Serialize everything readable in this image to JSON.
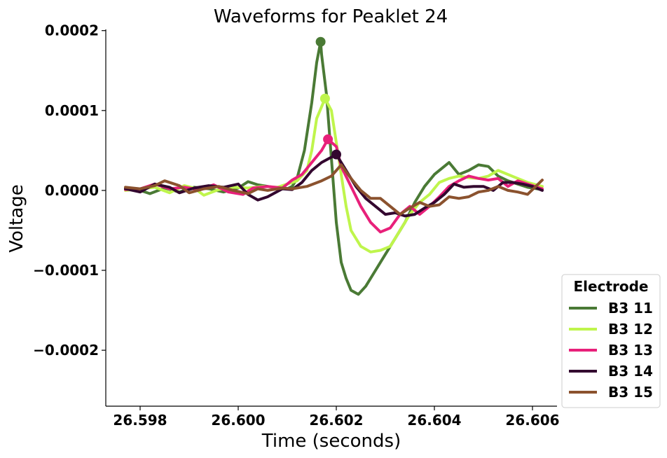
{
  "chart_data": {
    "type": "line",
    "title": "Waveforms for Peaklet 24",
    "xlabel": "Time (seconds)",
    "ylabel": "Voltage",
    "xlim": [
      26.5973,
      26.6065
    ],
    "ylim": [
      -0.00027,
      0.000205
    ],
    "xticks": [
      26.598,
      26.6,
      26.602,
      26.604,
      26.606
    ],
    "xtick_labels": [
      "26.598",
      "26.600",
      "26.602",
      "26.604",
      "26.606"
    ],
    "yticks": [
      0.0002,
      0.0001,
      0.0,
      -0.0001,
      -0.0002
    ],
    "ytick_labels": [
      "0.0002",
      "0.0001",
      "0.0000",
      "−0.0001",
      "−0.0002"
    ],
    "grid": false,
    "legend": {
      "title": "Electrode",
      "placement": "outside-lower-right"
    },
    "series": [
      {
        "name": "B3 11",
        "color": "#4a7a35",
        "peak": [
          26.60168,
          0.000186
        ],
        "points": [
          [
            26.5977,
            2e-06
          ],
          [
            26.598,
            0.0
          ],
          [
            26.5982,
            -4e-06
          ],
          [
            26.5985,
            3e-06
          ],
          [
            26.5988,
            -2e-06
          ],
          [
            26.5991,
            4e-06
          ],
          [
            26.5994,
            2e-06
          ],
          [
            26.5997,
            -2e-06
          ],
          [
            26.6,
            3e-06
          ],
          [
            26.6002,
            1.1e-05
          ],
          [
            26.6004,
            7e-06
          ],
          [
            26.6006,
            5e-06
          ],
          [
            26.6008,
            3e-06
          ],
          [
            26.601,
            2e-06
          ],
          [
            26.6011,
            5e-06
          ],
          [
            26.6012,
            1.5e-05
          ],
          [
            26.60135,
            5e-05
          ],
          [
            26.6015,
            0.00011
          ],
          [
            26.6016,
            0.00016
          ],
          [
            26.60168,
            0.000186
          ],
          [
            26.6017,
            0.00017
          ],
          [
            26.6018,
            0.00012
          ],
          [
            26.6019,
            4e-05
          ],
          [
            26.602,
            -4e-05
          ],
          [
            26.6021,
            -9e-05
          ],
          [
            26.6022,
            -0.00011
          ],
          [
            26.6023,
            -0.000125
          ],
          [
            26.60245,
            -0.00013
          ],
          [
            26.6026,
            -0.00012
          ],
          [
            26.6028,
            -0.0001
          ],
          [
            26.603,
            -8e-05
          ],
          [
            26.6032,
            -6e-05
          ],
          [
            26.6034,
            -4e-05
          ],
          [
            26.6036,
            -1.5e-05
          ],
          [
            26.6038,
            5e-06
          ],
          [
            26.604,
            2e-05
          ],
          [
            26.6042,
            3e-05
          ],
          [
            26.6043,
            3.5e-05
          ],
          [
            26.6045,
            2e-05
          ],
          [
            26.6047,
            2.5e-05
          ],
          [
            26.6049,
            3.2e-05
          ],
          [
            26.6051,
            3e-05
          ],
          [
            26.6053,
            1.8e-05
          ],
          [
            26.6055,
            1.2e-05
          ],
          [
            26.6057,
            8e-06
          ],
          [
            26.6059,
            4e-06
          ],
          [
            26.6062,
            1e-06
          ]
        ]
      },
      {
        "name": "B3 12",
        "color": "#bff54c",
        "peak": [
          26.60177,
          0.000115
        ],
        "points": [
          [
            26.5977,
            0.0
          ],
          [
            26.598,
            2e-06
          ],
          [
            26.5983,
            4e-06
          ],
          [
            26.5986,
            -3e-06
          ],
          [
            26.5989,
            6e-06
          ],
          [
            26.5991,
            3e-06
          ],
          [
            26.5993,
            -6e-06
          ],
          [
            26.5996,
            1e-06
          ],
          [
            26.5999,
            4e-06
          ],
          [
            26.6002,
            3e-06
          ],
          [
            26.6005,
            5e-06
          ],
          [
            26.6008,
            4e-06
          ],
          [
            26.601,
            8e-06
          ],
          [
            26.6012,
            1.2e-05
          ],
          [
            26.6014,
            2.5e-05
          ],
          [
            26.6015,
            5e-05
          ],
          [
            26.6016,
            9e-05
          ],
          [
            26.60177,
            0.000115
          ],
          [
            26.6019,
            0.0001
          ],
          [
            26.602,
            6e-05
          ],
          [
            26.6021,
            2e-05
          ],
          [
            26.6022,
            -2e-05
          ],
          [
            26.6023,
            -5e-05
          ],
          [
            26.6025,
            -7e-05
          ],
          [
            26.6027,
            -7.7e-05
          ],
          [
            26.6029,
            -7.5e-05
          ],
          [
            26.6031,
            -7e-05
          ],
          [
            26.6033,
            -5e-05
          ],
          [
            26.6035,
            -3e-05
          ],
          [
            26.6037,
            -1.5e-05
          ],
          [
            26.6039,
            -5e-06
          ],
          [
            26.6041,
            1e-05
          ],
          [
            26.6043,
            1.5e-05
          ],
          [
            26.6045,
            1.8e-05
          ],
          [
            26.6047,
            1.6e-05
          ],
          [
            26.6049,
            1.5e-05
          ],
          [
            26.6051,
            1.8e-05
          ],
          [
            26.6053,
            2.5e-05
          ],
          [
            26.6055,
            2e-05
          ],
          [
            26.6057,
            1.5e-05
          ],
          [
            26.6059,
            1e-05
          ],
          [
            26.6062,
            5e-06
          ]
        ]
      },
      {
        "name": "B3 13",
        "color": "#e8207a",
        "peak": [
          26.60183,
          6.4e-05
        ],
        "points": [
          [
            26.5977,
            1e-06
          ],
          [
            26.598,
            2e-06
          ],
          [
            26.5983,
            8e-06
          ],
          [
            26.5986,
            2e-06
          ],
          [
            26.5989,
            4e-06
          ],
          [
            26.5992,
            1e-06
          ],
          [
            26.5995,
            7e-06
          ],
          [
            26.5998,
            -2e-06
          ],
          [
            26.6001,
            -5e-06
          ],
          [
            26.6003,
            3e-06
          ],
          [
            26.6006,
            5e-06
          ],
          [
            26.6009,
            3e-06
          ],
          [
            26.6011,
            1.3e-05
          ],
          [
            26.6013,
            2e-05
          ],
          [
            26.6015,
            3.5e-05
          ],
          [
            26.6017,
            5e-05
          ],
          [
            26.60183,
            6.4e-05
          ],
          [
            26.602,
            5.5e-05
          ],
          [
            26.6021,
            3e-05
          ],
          [
            26.6023,
            5e-06
          ],
          [
            26.6025,
            -2e-05
          ],
          [
            26.6027,
            -4e-05
          ],
          [
            26.6029,
            -5.2e-05
          ],
          [
            26.6031,
            -4.7e-05
          ],
          [
            26.6033,
            -3e-05
          ],
          [
            26.6035,
            -2e-05
          ],
          [
            26.6037,
            -3e-05
          ],
          [
            26.6039,
            -2e-05
          ],
          [
            26.6041,
            -8e-06
          ],
          [
            26.6043,
            5e-06
          ],
          [
            26.6045,
            1.2e-05
          ],
          [
            26.6047,
            1.8e-05
          ],
          [
            26.6049,
            1.5e-05
          ],
          [
            26.6051,
            1.3e-05
          ],
          [
            26.6053,
            1.5e-05
          ],
          [
            26.6055,
            5e-06
          ],
          [
            26.6057,
            1.2e-05
          ],
          [
            26.6059,
            8e-06
          ],
          [
            26.6062,
            2e-06
          ]
        ]
      },
      {
        "name": "B3 14",
        "color": "#33072f",
        "peak": [
          26.602,
          4.5e-05
        ],
        "points": [
          [
            26.5977,
            2e-06
          ],
          [
            26.598,
            -2e-06
          ],
          [
            26.5983,
            8e-06
          ],
          [
            26.5986,
            4e-06
          ],
          [
            26.5988,
            -3e-06
          ],
          [
            26.5991,
            3e-06
          ],
          [
            26.5994,
            6e-06
          ],
          [
            26.5997,
            4e-06
          ],
          [
            26.6,
            8e-06
          ],
          [
            26.6002,
            -5e-06
          ],
          [
            26.6004,
            -1.2e-05
          ],
          [
            26.6006,
            -8e-06
          ],
          [
            26.6009,
            2e-06
          ],
          [
            26.6011,
            1e-06
          ],
          [
            26.6013,
            1e-05
          ],
          [
            26.6015,
            2.5e-05
          ],
          [
            26.6017,
            3.5e-05
          ],
          [
            26.602,
            4.5e-05
          ],
          [
            26.6022,
            2.5e-05
          ],
          [
            26.6024,
            5e-06
          ],
          [
            26.6026,
            -1e-05
          ],
          [
            26.6028,
            -2e-05
          ],
          [
            26.603,
            -3e-05
          ],
          [
            26.6032,
            -2.8e-05
          ],
          [
            26.6034,
            -3.2e-05
          ],
          [
            26.6036,
            -3e-05
          ],
          [
            26.6038,
            -2.2e-05
          ],
          [
            26.604,
            -1.5e-05
          ],
          [
            26.6042,
            -5e-06
          ],
          [
            26.6044,
            8e-06
          ],
          [
            26.6046,
            4e-06
          ],
          [
            26.6048,
            5e-06
          ],
          [
            26.605,
            5e-06
          ],
          [
            26.6052,
            0.0
          ],
          [
            26.6054,
            1e-05
          ],
          [
            26.6056,
            1e-05
          ],
          [
            26.6058,
            8e-06
          ],
          [
            26.606,
            5e-06
          ],
          [
            26.6062,
            0.0
          ]
        ]
      },
      {
        "name": "B3 15",
        "color": "#8b522e",
        "peak": null,
        "points": [
          [
            26.5977,
            4e-06
          ],
          [
            26.598,
            2e-06
          ],
          [
            26.5983,
            6e-06
          ],
          [
            26.5985,
            1.2e-05
          ],
          [
            26.5988,
            6e-06
          ],
          [
            26.599,
            -3e-06
          ],
          [
            26.5993,
            2e-06
          ],
          [
            26.5996,
            5e-06
          ],
          [
            26.5999,
            0.0
          ],
          [
            26.6002,
            -4e-06
          ],
          [
            26.6004,
            2e-06
          ],
          [
            26.6006,
            0.0
          ],
          [
            26.6009,
            3e-06
          ],
          [
            26.6011,
            2e-06
          ],
          [
            26.6014,
            5e-06
          ],
          [
            26.6017,
            1.2e-05
          ],
          [
            26.6019,
            1.8e-05
          ],
          [
            26.6021,
            3.2e-05
          ],
          [
            26.6023,
            1.5e-05
          ],
          [
            26.6025,
            0.0
          ],
          [
            26.6027,
            -1e-05
          ],
          [
            26.6029,
            -1e-05
          ],
          [
            26.6031,
            -2e-05
          ],
          [
            26.6033,
            -3e-05
          ],
          [
            26.6035,
            -2.2e-05
          ],
          [
            26.6037,
            -1.5e-05
          ],
          [
            26.6039,
            -2e-05
          ],
          [
            26.6041,
            -1.8e-05
          ],
          [
            26.6043,
            -8e-06
          ],
          [
            26.6045,
            -1e-05
          ],
          [
            26.6047,
            -8e-06
          ],
          [
            26.6049,
            -2e-06
          ],
          [
            26.6051,
            0.0
          ],
          [
            26.6053,
            5e-06
          ],
          [
            26.6055,
            0.0
          ],
          [
            26.6057,
            -2e-06
          ],
          [
            26.6059,
            -5e-06
          ],
          [
            26.6062,
            1.3e-05
          ]
        ]
      }
    ]
  }
}
